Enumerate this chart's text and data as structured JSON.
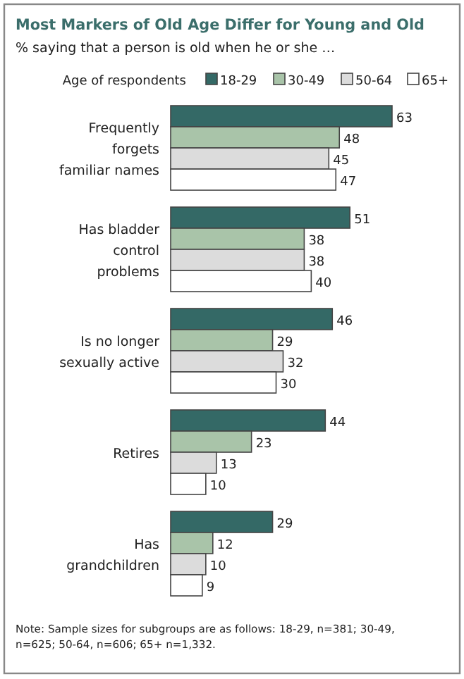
{
  "chart_data": {
    "type": "bar",
    "orientation": "horizontal",
    "title": "Most Markers of Old Age Differ for Young and Old",
    "subtitle": "% saying that a person is old when he or she …",
    "legend_title": "Age of respondents",
    "legend": "top",
    "data_labels": true,
    "categories": [
      "Frequently forgets familiar names",
      "Has bladder control problems",
      "Is no longer sexually active",
      "Retires",
      "Has grandchildren"
    ],
    "series": [
      {
        "name": "18-29",
        "color": "#346966",
        "values": [
          63,
          51,
          46,
          44,
          29
        ]
      },
      {
        "name": "30-49",
        "color": "#a9c4a9",
        "values": [
          48,
          38,
          29,
          23,
          12
        ]
      },
      {
        "name": "50-64",
        "color": "#dcdcdc",
        "values": [
          45,
          38,
          32,
          13,
          10
        ]
      },
      {
        "name": "65+",
        "color": "#ffffff",
        "values": [
          47,
          40,
          30,
          10,
          9
        ]
      }
    ],
    "annotations": [
      "Note: Sample sizes for subgroups are as follows: 18-29, n=381; 30-49, n=625; 50-64, n=606; 65+ n=1,332."
    ]
  }
}
